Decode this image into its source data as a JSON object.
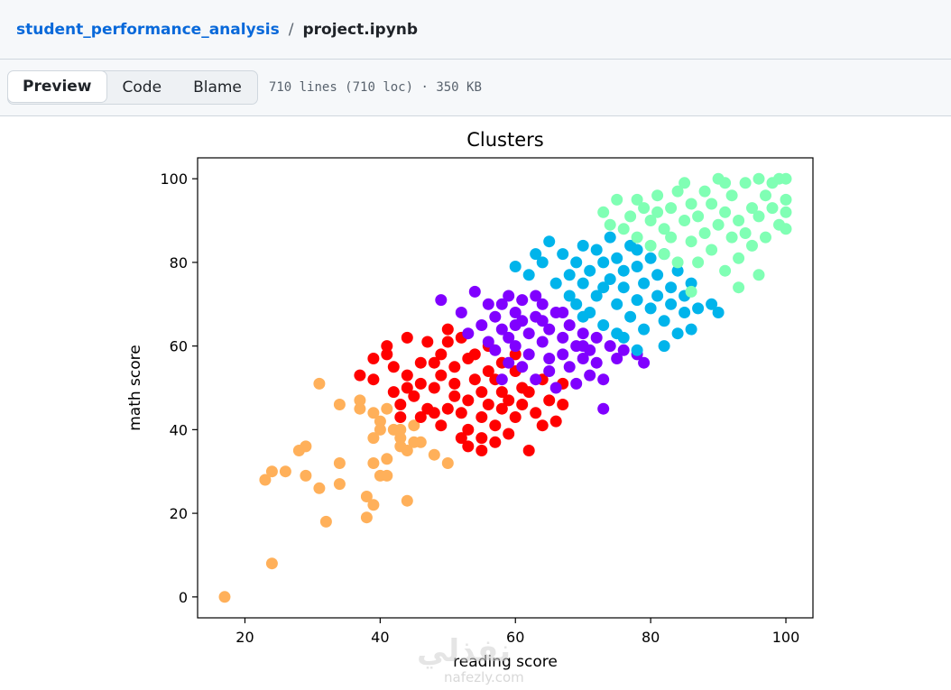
{
  "breadcrumb": {
    "repo": "student_performance_analysis",
    "separator": "/",
    "file": "project.ipynb"
  },
  "toolbar": {
    "tabs": [
      "Preview",
      "Code",
      "Blame"
    ],
    "active_tab": "Preview",
    "file_info": "710 lines (710 loc) · 350 KB"
  },
  "watermark": {
    "text": "نفذلي",
    "site": "nafezly.com"
  },
  "chart_data": {
    "type": "scatter",
    "title": "Clusters",
    "xlabel": "reading score",
    "ylabel": "math score",
    "xlim": [
      13,
      104
    ],
    "ylim": [
      -5,
      105
    ],
    "xticks": [
      20,
      40,
      60,
      80,
      100
    ],
    "yticks": [
      0,
      20,
      40,
      60,
      80,
      100
    ],
    "grid": false,
    "legend": "none",
    "series": [
      {
        "color": "#ffb05a",
        "points": [
          [
            17,
            0
          ],
          [
            24,
            8
          ],
          [
            23,
            28
          ],
          [
            24,
            30
          ],
          [
            26,
            30
          ],
          [
            28,
            35
          ],
          [
            29,
            36
          ],
          [
            29,
            29
          ],
          [
            31,
            51
          ],
          [
            31,
            26
          ],
          [
            32,
            18
          ],
          [
            34,
            27
          ],
          [
            34,
            32
          ],
          [
            34,
            46
          ],
          [
            37,
            47
          ],
          [
            37,
            45
          ],
          [
            38,
            24
          ],
          [
            38,
            19
          ],
          [
            39,
            22
          ],
          [
            39,
            32
          ],
          [
            39,
            38
          ],
          [
            40,
            40
          ],
          [
            40,
            42
          ],
          [
            40,
            29
          ],
          [
            41,
            29
          ],
          [
            41,
            33
          ],
          [
            42,
            40
          ],
          [
            43,
            40
          ],
          [
            43,
            36
          ],
          [
            43,
            38
          ],
          [
            44,
            35
          ],
          [
            44,
            23
          ],
          [
            45,
            37
          ],
          [
            45,
            41
          ],
          [
            46,
            37
          ],
          [
            48,
            34
          ],
          [
            50,
            32
          ],
          [
            41,
            45
          ],
          [
            39,
            44
          ]
        ]
      },
      {
        "color": "#ff0000",
        "points": [
          [
            37,
            53
          ],
          [
            39,
            52
          ],
          [
            39,
            57
          ],
          [
            41,
            60
          ],
          [
            41,
            58
          ],
          [
            42,
            55
          ],
          [
            42,
            49
          ],
          [
            43,
            43
          ],
          [
            43,
            46
          ],
          [
            44,
            53
          ],
          [
            44,
            62
          ],
          [
            45,
            48
          ],
          [
            46,
            51
          ],
          [
            46,
            56
          ],
          [
            47,
            45
          ],
          [
            47,
            61
          ],
          [
            48,
            50
          ],
          [
            48,
            56
          ],
          [
            48,
            44
          ],
          [
            49,
            58
          ],
          [
            49,
            53
          ],
          [
            49,
            41
          ],
          [
            50,
            61
          ],
          [
            50,
            64
          ],
          [
            51,
            48
          ],
          [
            51,
            55
          ],
          [
            51,
            51
          ],
          [
            52,
            62
          ],
          [
            52,
            44
          ],
          [
            53,
            40
          ],
          [
            53,
            57
          ],
          [
            53,
            47
          ],
          [
            53,
            36
          ],
          [
            54,
            52
          ],
          [
            54,
            58
          ],
          [
            55,
            49
          ],
          [
            55,
            43
          ],
          [
            55,
            35
          ],
          [
            56,
            54
          ],
          [
            56,
            46
          ],
          [
            56,
            60
          ],
          [
            57,
            52
          ],
          [
            57,
            41
          ],
          [
            58,
            49
          ],
          [
            58,
            45
          ],
          [
            58,
            56
          ],
          [
            59,
            47
          ],
          [
            59,
            39
          ],
          [
            60,
            54
          ],
          [
            60,
            43
          ],
          [
            61,
            50
          ],
          [
            61,
            46
          ],
          [
            62,
            35
          ],
          [
            62,
            49
          ],
          [
            63,
            44
          ],
          [
            64,
            52
          ],
          [
            64,
            41
          ],
          [
            65,
            47
          ],
          [
            66,
            42
          ],
          [
            67,
            46
          ],
          [
            67,
            51
          ],
          [
            55,
            38
          ],
          [
            50,
            45
          ],
          [
            52,
            38
          ],
          [
            46,
            43
          ],
          [
            60,
            58
          ],
          [
            57,
            37
          ],
          [
            44,
            50
          ]
        ]
      },
      {
        "color": "#8000ff",
        "points": [
          [
            49,
            71
          ],
          [
            52,
            68
          ],
          [
            54,
            73
          ],
          [
            55,
            65
          ],
          [
            56,
            61
          ],
          [
            57,
            67
          ],
          [
            57,
            59
          ],
          [
            58,
            64
          ],
          [
            58,
            70
          ],
          [
            59,
            62
          ],
          [
            59,
            56
          ],
          [
            60,
            68
          ],
          [
            60,
            60
          ],
          [
            60,
            65
          ],
          [
            61,
            71
          ],
          [
            61,
            55
          ],
          [
            62,
            63
          ],
          [
            62,
            58
          ],
          [
            63,
            67
          ],
          [
            63,
            52
          ],
          [
            64,
            61
          ],
          [
            64,
            70
          ],
          [
            65,
            64
          ],
          [
            65,
            57
          ],
          [
            65,
            54
          ],
          [
            66,
            68
          ],
          [
            66,
            50
          ],
          [
            67,
            62
          ],
          [
            67,
            58
          ],
          [
            68,
            65
          ],
          [
            68,
            55
          ],
          [
            69,
            60
          ],
          [
            69,
            51
          ],
          [
            70,
            63
          ],
          [
            70,
            57
          ],
          [
            71,
            59
          ],
          [
            71,
            53
          ],
          [
            72,
            62
          ],
          [
            72,
            56
          ],
          [
            73,
            45
          ],
          [
            74,
            60
          ],
          [
            75,
            57
          ],
          [
            76,
            59
          ],
          [
            78,
            58
          ],
          [
            79,
            56
          ],
          [
            53,
            63
          ],
          [
            56,
            70
          ],
          [
            61,
            66
          ],
          [
            64,
            66
          ],
          [
            67,
            68
          ],
          [
            70,
            60
          ],
          [
            73,
            52
          ],
          [
            59,
            72
          ],
          [
            63,
            72
          ],
          [
            58,
            52
          ]
        ]
      },
      {
        "color": "#00b4eb",
        "points": [
          [
            60,
            79
          ],
          [
            62,
            77
          ],
          [
            63,
            82
          ],
          [
            64,
            80
          ],
          [
            65,
            85
          ],
          [
            66,
            75
          ],
          [
            67,
            82
          ],
          [
            68,
            77
          ],
          [
            68,
            72
          ],
          [
            69,
            80
          ],
          [
            69,
            70
          ],
          [
            70,
            84
          ],
          [
            70,
            75
          ],
          [
            71,
            78
          ],
          [
            71,
            68
          ],
          [
            72,
            83
          ],
          [
            72,
            72
          ],
          [
            73,
            80
          ],
          [
            73,
            65
          ],
          [
            74,
            76
          ],
          [
            74,
            86
          ],
          [
            75,
            70
          ],
          [
            75,
            81
          ],
          [
            75,
            63
          ],
          [
            76,
            74
          ],
          [
            76,
            78
          ],
          [
            77,
            67
          ],
          [
            77,
            84
          ],
          [
            78,
            71
          ],
          [
            78,
            79
          ],
          [
            78,
            59
          ],
          [
            79,
            75
          ],
          [
            79,
            64
          ],
          [
            80,
            81
          ],
          [
            80,
            69
          ],
          [
            81,
            72
          ],
          [
            81,
            77
          ],
          [
            82,
            66
          ],
          [
            82,
            60
          ],
          [
            83,
            74
          ],
          [
            83,
            70
          ],
          [
            84,
            78
          ],
          [
            84,
            63
          ],
          [
            85,
            68
          ],
          [
            85,
            72
          ],
          [
            86,
            64
          ],
          [
            86,
            75
          ],
          [
            87,
            69
          ],
          [
            89,
            70
          ],
          [
            90,
            68
          ],
          [
            76,
            62
          ],
          [
            73,
            74
          ],
          [
            70,
            67
          ],
          [
            78,
            83
          ],
          [
            82,
            82
          ]
        ]
      },
      {
        "color": "#80ffb4",
        "points": [
          [
            73,
            92
          ],
          [
            74,
            89
          ],
          [
            75,
            95
          ],
          [
            76,
            88
          ],
          [
            77,
            91
          ],
          [
            78,
            86
          ],
          [
            79,
            93
          ],
          [
            80,
            84
          ],
          [
            80,
            90
          ],
          [
            81,
            96
          ],
          [
            82,
            88
          ],
          [
            82,
            82
          ],
          [
            83,
            93
          ],
          [
            83,
            86
          ],
          [
            84,
            97
          ],
          [
            84,
            80
          ],
          [
            85,
            90
          ],
          [
            85,
            99
          ],
          [
            86,
            85
          ],
          [
            86,
            94
          ],
          [
            87,
            80
          ],
          [
            87,
            91
          ],
          [
            88,
            97
          ],
          [
            88,
            87
          ],
          [
            89,
            83
          ],
          [
            89,
            94
          ],
          [
            90,
            89
          ],
          [
            90,
            100
          ],
          [
            91,
            78
          ],
          [
            91,
            92
          ],
          [
            92,
            86
          ],
          [
            92,
            96
          ],
          [
            93,
            81
          ],
          [
            93,
            90
          ],
          [
            94,
            99
          ],
          [
            94,
            87
          ],
          [
            95,
            93
          ],
          [
            95,
            84
          ],
          [
            96,
            100
          ],
          [
            96,
            91
          ],
          [
            97,
            96
          ],
          [
            97,
            86
          ],
          [
            98,
            93
          ],
          [
            98,
            99
          ],
          [
            99,
            89
          ],
          [
            99,
            100
          ],
          [
            100,
            95
          ],
          [
            100,
            88
          ],
          [
            96,
            77
          ],
          [
            93,
            74
          ],
          [
            81,
            92
          ],
          [
            86,
            73
          ],
          [
            78,
            95
          ],
          [
            91,
            99
          ],
          [
            100,
            100
          ],
          [
            100,
            92
          ]
        ]
      }
    ]
  }
}
